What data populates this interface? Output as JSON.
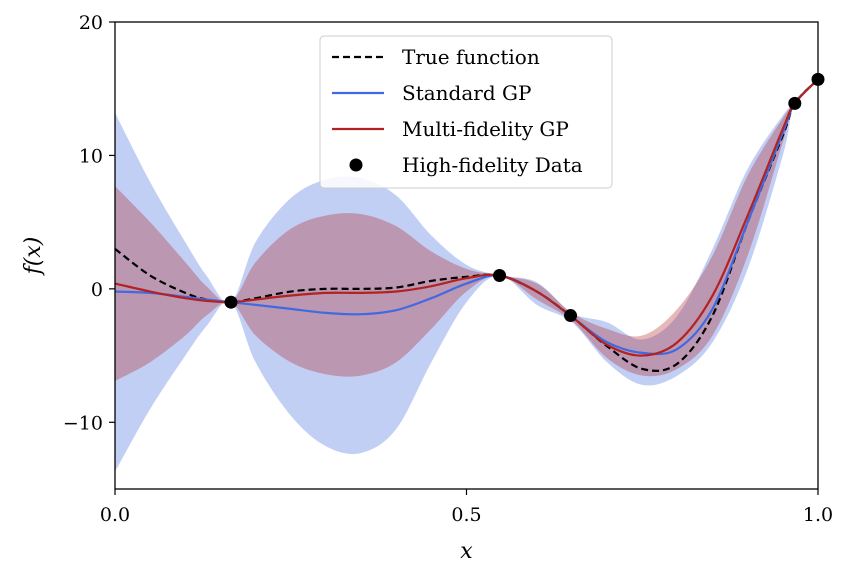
{
  "chart_data": {
    "type": "line",
    "title": "",
    "xlabel": "x",
    "ylabel": "f(x)",
    "xlim": [
      0.0,
      1.0
    ],
    "ylim": [
      -15,
      20
    ],
    "x_ticks": [
      0.0,
      0.5,
      1.0
    ],
    "x_tick_labels": [
      "0.0",
      "0.5",
      "1.0"
    ],
    "y_ticks": [
      -10,
      0,
      10,
      20
    ],
    "y_tick_labels": [
      "−10",
      "0",
      "10",
      "20"
    ],
    "grid": false,
    "legend_position": "top-center",
    "x": [
      0.0,
      0.05,
      0.1,
      0.13,
      0.165,
      0.2,
      0.25,
      0.3,
      0.35,
      0.4,
      0.45,
      0.5,
      0.547,
      0.6,
      0.65,
      0.7,
      0.75,
      0.8,
      0.85,
      0.9,
      0.95,
      0.967,
      1.0
    ],
    "series": [
      {
        "name": "True function",
        "color": "#000000",
        "style": "dashed",
        "values": [
          3.0,
          1.0,
          -0.3,
          -0.8,
          -1.0,
          -0.7,
          -0.2,
          0.0,
          0.0,
          0.1,
          0.6,
          0.9,
          1.0,
          -0.2,
          -2.1,
          -4.3,
          -6.0,
          -5.6,
          -2.0,
          5.0,
          11.5,
          13.9,
          15.7
        ]
      },
      {
        "name": "Standard GP",
        "color": "#4169e1",
        "style": "solid",
        "values": [
          -0.2,
          -0.3,
          -0.6,
          -0.8,
          -1.0,
          -1.2,
          -1.5,
          -1.8,
          -1.9,
          -1.6,
          -0.7,
          0.4,
          1.0,
          -0.2,
          -2.1,
          -4.0,
          -4.8,
          -4.5,
          -1.5,
          5.0,
          11.7,
          13.9,
          15.7
        ]
      },
      {
        "name": "Multi-fidelity GP",
        "color": "#b22222",
        "style": "solid",
        "values": [
          0.4,
          -0.2,
          -0.7,
          -0.9,
          -1.0,
          -0.8,
          -0.5,
          -0.3,
          -0.3,
          -0.2,
          0.2,
          0.8,
          1.0,
          -0.2,
          -2.1,
          -4.2,
          -5.0,
          -4.0,
          -0.5,
          5.5,
          12.0,
          13.9,
          15.7
        ]
      }
    ],
    "bands": [
      {
        "name": "Standard GP confidence",
        "color": "#4169e1",
        "opacity": 0.32,
        "upper": [
          13.2,
          8.0,
          3.5,
          1.0,
          -1.0,
          3.5,
          6.8,
          8.2,
          8.3,
          7.0,
          4.0,
          1.8,
          1.0,
          0.5,
          -1.8,
          -2.5,
          -3.8,
          -2.0,
          3.0,
          9.0,
          13.0,
          13.9,
          15.7
        ],
        "lower": [
          -13.7,
          -9.0,
          -5.0,
          -2.8,
          -1.0,
          -5.5,
          -9.5,
          -11.8,
          -12.3,
          -10.5,
          -5.5,
          -1.0,
          1.0,
          -1.2,
          -2.5,
          -5.5,
          -7.2,
          -6.5,
          -4.0,
          1.5,
          10.0,
          13.9,
          15.7
        ]
      },
      {
        "name": "Multi-fidelity GP confidence",
        "color": "#b22222",
        "opacity": 0.32,
        "upper": [
          7.7,
          5.0,
          2.0,
          0.2,
          -1.0,
          2.0,
          4.5,
          5.5,
          5.6,
          4.7,
          2.8,
          1.5,
          1.0,
          0.4,
          -1.8,
          -3.0,
          -3.5,
          -1.5,
          2.5,
          8.5,
          12.8,
          13.9,
          15.7
        ],
        "lower": [
          -6.9,
          -5.5,
          -3.5,
          -2.0,
          -1.0,
          -3.5,
          -5.5,
          -6.4,
          -6.5,
          -5.5,
          -3.0,
          -0.2,
          1.0,
          -0.8,
          -2.4,
          -5.2,
          -6.5,
          -6.0,
          -3.5,
          2.5,
          11.0,
          13.9,
          15.7
        ]
      }
    ],
    "scatter": {
      "name": "High-fidelity Data",
      "color": "#000000",
      "x": [
        0.165,
        0.547,
        0.648,
        0.967,
        1.0
      ],
      "y": [
        -1.0,
        1.0,
        -2.0,
        13.9,
        15.7
      ]
    },
    "legend": [
      {
        "label": "True function",
        "kind": "dashed-line",
        "color": "#000000"
      },
      {
        "label": "Standard GP",
        "kind": "line",
        "color": "#4169e1"
      },
      {
        "label": "Multi-fidelity GP",
        "kind": "line",
        "color": "#b22222"
      },
      {
        "label": "High-fidelity Data",
        "kind": "marker",
        "color": "#000000"
      }
    ]
  }
}
